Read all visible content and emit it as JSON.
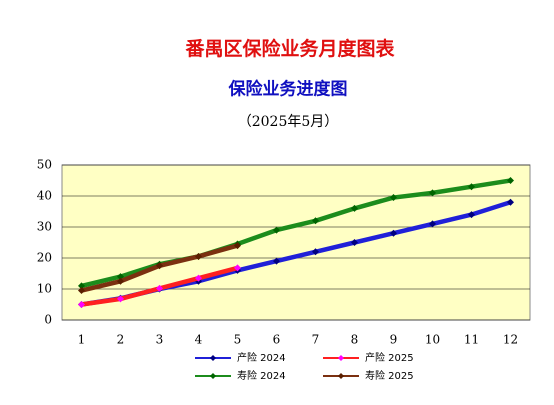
{
  "chart_data": {
    "type": "line",
    "title": "番禺区保险业务月度图表",
    "subtitle": "保险业务进度图",
    "date_note": "（2025年5月）",
    "categories": [
      "1",
      "2",
      "3",
      "4",
      "5",
      "6",
      "7",
      "8",
      "9",
      "10",
      "11",
      "12"
    ],
    "series": [
      {
        "name": "产险 2024",
        "color": "#2020d8",
        "marker_color": "#000080",
        "values": [
          5,
          7,
          10,
          12.5,
          16,
          19,
          22,
          25,
          28,
          31,
          34,
          38
        ]
      },
      {
        "name": "产险 2025",
        "color": "#ff2020",
        "marker_color": "#ff00ff",
        "values": [
          5,
          6.8,
          10.2,
          13.5,
          16.8,
          null,
          null,
          null,
          null,
          null,
          null,
          null
        ]
      },
      {
        "name": "寿险 2024",
        "color": "#1c8c1c",
        "marker_color": "#006400",
        "values": [
          11,
          14,
          18,
          20.5,
          24.5,
          29,
          32,
          36,
          39.5,
          41,
          43,
          45
        ]
      },
      {
        "name": "寿险 2025",
        "color": "#7b3010",
        "marker_color": "#5a1e00",
        "values": [
          9.5,
          12.5,
          17.5,
          20.5,
          24,
          null,
          null,
          null,
          null,
          null,
          null,
          null
        ]
      }
    ],
    "ylim": [
      0,
      50
    ],
    "yticks": [
      0,
      10,
      20,
      30,
      40,
      50
    ],
    "grid": true
  }
}
